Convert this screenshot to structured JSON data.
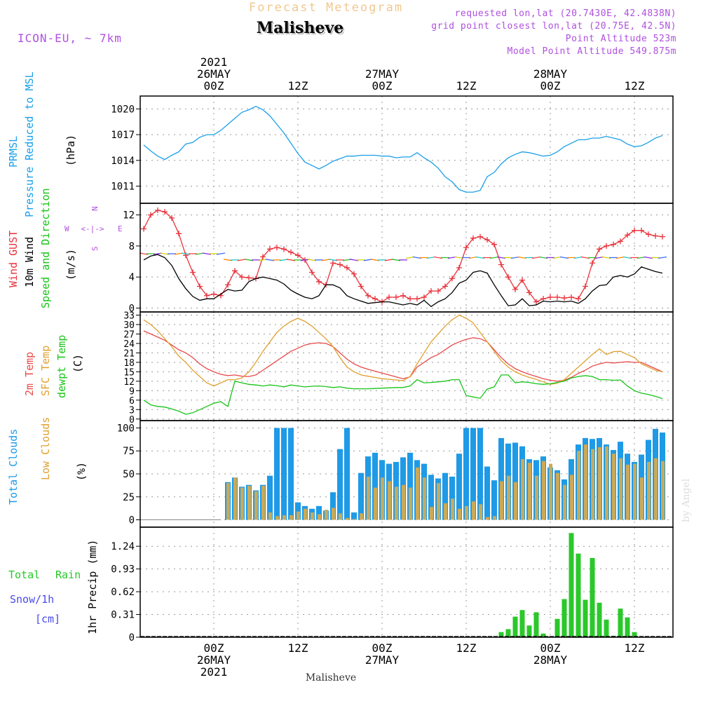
{
  "header": {
    "product": "Forecast Meteogram",
    "station": "Malisheve",
    "model": "ICON-EU, ~ 7km",
    "requested": "requested lon,lat (20.7430E, 42.4838N)",
    "grid_point": "grid point closest lon,lat (20.75E, 42.5N)",
    "point_alt": "Point Altitude 523m",
    "model_alt": "Model Point Altitude 549.875m",
    "footer_station": "Malisheve",
    "credit": "by Angel"
  },
  "colors": {
    "pressure": "#1aa0e8",
    "gust": "#e8313a",
    "wind": "#000000",
    "temp2m": "#e84a4a",
    "sfc": "#e0a030",
    "dew": "#18c418",
    "total_clouds": "#1e9ae6",
    "low_clouds": "#c8aa5a",
    "rain": "#2ac82a",
    "snow": "#4a4ae8",
    "label_purple": "#b050e0",
    "product_title": "#f0c890"
  },
  "time_axis": {
    "top_labels": [
      {
        "h": 0,
        "lines": [
          "2021",
          "26MAY",
          "00Z"
        ]
      },
      {
        "h": 12,
        "lines": [
          "12Z"
        ]
      },
      {
        "h": 24,
        "lines": [
          "27MAY",
          "00Z"
        ]
      },
      {
        "h": 36,
        "lines": [
          "12Z"
        ]
      },
      {
        "h": 48,
        "lines": [
          "28MAY",
          "00Z"
        ]
      },
      {
        "h": 60,
        "lines": [
          "12Z"
        ]
      }
    ],
    "bottom_labels": [
      {
        "h": 0,
        "lines": [
          "00Z",
          "26MAY",
          "2021"
        ]
      },
      {
        "h": 12,
        "lines": [
          "12Z"
        ]
      },
      {
        "h": 24,
        "lines": [
          "00Z",
          "27MAY"
        ]
      },
      {
        "h": 36,
        "lines": [
          "12Z"
        ]
      },
      {
        "h": 48,
        "lines": [
          "00Z",
          "28MAY"
        ]
      },
      {
        "h": 60,
        "lines": [
          "12Z"
        ]
      }
    ]
  },
  "panels": {
    "pressure": {
      "labels": [
        "PRMSL",
        "Pressure Reduced to MSL",
        "(hPa)"
      ],
      "ticks": [
        "1011",
        "1014",
        "1017",
        "1020"
      ]
    },
    "wind": {
      "labels": [
        "Wind GUST",
        "10m Wind",
        "Speed and Direction",
        "(m/s)"
      ],
      "ticks": [
        "0",
        "4",
        "8",
        "12"
      ],
      "compass": {
        "n": "N",
        "s": "S",
        "e": "E",
        "w": "W",
        "arrow": "<-|->"
      }
    },
    "temp": {
      "labels": [
        "2m Temp",
        "SFC Temp",
        "dewpt Temp",
        "(C)"
      ],
      "ticks": [
        "0",
        "3",
        "6",
        "9",
        "12",
        "15",
        "18",
        "21",
        "24",
        "27",
        "30",
        "33"
      ]
    },
    "clouds": {
      "labels": [
        "Total Clouds",
        "Low Clouds",
        "(%)"
      ],
      "ticks": [
        "0",
        "25",
        "50",
        "75",
        "100"
      ]
    },
    "precip": {
      "labels": [
        "Total",
        "Rain",
        "Snow/1h",
        "[cm]",
        "1hr Precip (mm)"
      ],
      "ticks": [
        "0",
        "0.31",
        "0.62",
        "0.93",
        "1.24"
      ]
    }
  },
  "chart_data": [
    {
      "type": "line",
      "name": "PRMSL",
      "ylabel": "(hPa)",
      "xunit": "hours from 2021-05-26 00Z",
      "ylim": [
        1009,
        1021.5
      ],
      "x": [
        -10,
        -9,
        -8,
        -7,
        -6,
        -5,
        -4,
        -3,
        -2,
        -1,
        0,
        1,
        2,
        3,
        4,
        5,
        6,
        7,
        8,
        9,
        10,
        11,
        12,
        13,
        14,
        15,
        16,
        17,
        18,
        19,
        20,
        21,
        22,
        23,
        24,
        25,
        26,
        27,
        28,
        29,
        30,
        31,
        32,
        33,
        34,
        35,
        36,
        37,
        38,
        39,
        40,
        41,
        42,
        43,
        44,
        45,
        46,
        47,
        48,
        49,
        50,
        51,
        52,
        53,
        54,
        55,
        56,
        57,
        58,
        59,
        60,
        61,
        62,
        63,
        64
      ],
      "series": [
        {
          "values": [
            1015.8,
            1015.1,
            1014.5,
            1014.1,
            1014.6,
            1015.0,
            1015.9,
            1016.1,
            1016.7,
            1017.0,
            1017.0,
            1017.5,
            1018.2,
            1018.9,
            1019.6,
            1019.9,
            1020.3,
            1019.9,
            1019.2,
            1018.2,
            1017.2,
            1016.0,
            1014.8,
            1013.8,
            1013.4,
            1013.0,
            1013.4,
            1013.9,
            1014.2,
            1014.5,
            1014.5,
            1014.6,
            1014.6,
            1014.6,
            1014.5,
            1014.5,
            1014.3,
            1014.4,
            1014.4,
            1014.9,
            1014.3,
            1013.8,
            1013.1,
            1012.1,
            1011.5,
            1010.6,
            1010.3,
            1010.3,
            1010.5,
            1012.1,
            1012.6,
            1013.6,
            1014.3,
            1014.7,
            1015.0,
            1014.9,
            1014.7,
            1014.5,
            1014.6,
            1015.0,
            1015.6,
            1016.0,
            1016.4,
            1016.4,
            1016.6,
            1016.6,
            1016.8,
            1016.6,
            1016.4,
            1015.9,
            1015.6,
            1015.7,
            1016.1,
            1016.6,
            1016.9
          ]
        }
      ]
    },
    {
      "type": "line",
      "name": "Wind",
      "ylabel": "(m/s)",
      "ylim": [
        -0.5,
        13.5
      ],
      "x": [
        -10,
        -9,
        -8,
        -7,
        -6,
        -5,
        -4,
        -3,
        -2,
        -1,
        0,
        1,
        2,
        3,
        4,
        5,
        6,
        7,
        8,
        9,
        10,
        11,
        12,
        13,
        14,
        15,
        16,
        17,
        18,
        19,
        20,
        21,
        22,
        23,
        24,
        25,
        26,
        27,
        28,
        29,
        30,
        31,
        32,
        33,
        34,
        35,
        36,
        37,
        38,
        39,
        40,
        41,
        42,
        43,
        44,
        45,
        46,
        47,
        48,
        49,
        50,
        51,
        52,
        53,
        54,
        55,
        56,
        57,
        58,
        59,
        60,
        61,
        62,
        63,
        64
      ],
      "series": [
        {
          "name": "Wind GUST",
          "values": [
            10.2,
            12.0,
            12.6,
            12.4,
            11.6,
            9.6,
            6.8,
            4.6,
            2.8,
            1.6,
            1.8,
            1.6,
            3.0,
            4.8,
            4.0,
            3.9,
            3.8,
            6.6,
            7.6,
            7.8,
            7.6,
            7.2,
            6.8,
            6.2,
            4.6,
            3.4,
            3.0,
            5.8,
            5.6,
            5.2,
            4.4,
            2.8,
            1.6,
            1.2,
            0.8,
            1.4,
            1.4,
            1.6,
            1.2,
            1.2,
            1.4,
            2.2,
            2.2,
            2.8,
            3.8,
            5.2,
            7.8,
            9.0,
            9.2,
            8.8,
            8.2,
            5.6,
            4.0,
            2.4,
            3.6,
            2.0,
            0.8,
            1.2,
            1.4,
            1.4,
            1.3,
            1.4,
            1.2,
            2.8,
            5.8,
            7.6,
            8.0,
            8.2,
            8.6,
            9.4,
            10.0,
            10.0,
            9.5,
            9.3,
            9.2
          ]
        },
        {
          "name": "10m Wind",
          "values": [
            6.2,
            6.7,
            6.9,
            6.5,
            5.5,
            3.8,
            2.5,
            1.5,
            1.0,
            1.2,
            1.2,
            1.8,
            2.4,
            2.2,
            2.3,
            3.4,
            3.8,
            4.0,
            3.8,
            3.6,
            3.1,
            2.3,
            1.8,
            1.4,
            1.2,
            1.6,
            3.0,
            3.0,
            2.6,
            1.6,
            1.2,
            0.9,
            0.6,
            0.7,
            0.8,
            0.8,
            0.6,
            0.4,
            0.6,
            0.4,
            1.0,
            0.2,
            0.8,
            1.2,
            2.0,
            3.2,
            3.6,
            4.6,
            4.8,
            4.5,
            3.0,
            1.6,
            0.3,
            0.4,
            1.2,
            0.3,
            0.4,
            0.9,
            0.8,
            0.9,
            0.8,
            0.9,
            0.6,
            1.2,
            2.2,
            2.9,
            3.0,
            4.0,
            4.2,
            4.0,
            4.4,
            5.3,
            5.0,
            4.7,
            4.5
          ]
        }
      ]
    },
    {
      "type": "line",
      "name": "Temperature",
      "ylabel": "(C)",
      "ylim": [
        -0.5,
        34
      ],
      "x": [
        -10,
        -9,
        -8,
        -7,
        -6,
        -5,
        -4,
        -3,
        -2,
        -1,
        0,
        1,
        2,
        3,
        4,
        5,
        6,
        7,
        8,
        9,
        10,
        11,
        12,
        13,
        14,
        15,
        16,
        17,
        18,
        19,
        20,
        21,
        22,
        23,
        24,
        25,
        26,
        27,
        28,
        29,
        30,
        31,
        32,
        33,
        34,
        35,
        36,
        37,
        38,
        39,
        40,
        41,
        42,
        43,
        44,
        45,
        46,
        47,
        48,
        49,
        50,
        51,
        52,
        53,
        54,
        55,
        56,
        57,
        58,
        59,
        60,
        61,
        62,
        63,
        64
      ],
      "series": [
        {
          "name": "2m Temp",
          "values": [
            28.0,
            27.0,
            26.0,
            25.0,
            23.5,
            22.0,
            21.0,
            19.5,
            17.5,
            16.0,
            15.0,
            14.2,
            13.8,
            14.0,
            13.6,
            13.5,
            14.0,
            15.5,
            17.0,
            18.5,
            20.0,
            21.5,
            22.5,
            23.5,
            24.0,
            24.2,
            24.0,
            23.0,
            21.0,
            19.0,
            17.5,
            16.5,
            15.8,
            15.2,
            14.6,
            14.0,
            13.4,
            12.8,
            13.4,
            16.5,
            18.0,
            19.5,
            20.5,
            22.0,
            23.5,
            24.5,
            25.3,
            25.8,
            25.5,
            24.5,
            22.0,
            19.5,
            17.5,
            16.0,
            15.0,
            14.2,
            13.5,
            12.8,
            12.3,
            12.0,
            12.3,
            13.2,
            14.5,
            15.5,
            16.8,
            17.5,
            18.0,
            17.8,
            18.0,
            18.2,
            18.0,
            18.0,
            17.0,
            16.0,
            15.0
          ]
        },
        {
          "name": "SFC Temp",
          "values": [
            31.5,
            30.0,
            28.0,
            25.5,
            23.0,
            20.0,
            18.0,
            15.5,
            13.5,
            11.5,
            10.5,
            11.5,
            12.5,
            12.5,
            13.0,
            15.0,
            18.0,
            21.5,
            24.5,
            27.5,
            29.5,
            31.0,
            32.0,
            31.0,
            29.5,
            27.5,
            25.5,
            23.0,
            19.5,
            16.5,
            15.0,
            14.0,
            13.6,
            13.2,
            12.8,
            12.6,
            12.4,
            12.2,
            13.5,
            17.5,
            21.0,
            24.5,
            27.0,
            29.5,
            31.5,
            33.0,
            32.0,
            30.5,
            27.5,
            24.5,
            21.5,
            18.5,
            16.5,
            15.0,
            14.0,
            13.2,
            12.6,
            11.8,
            11.0,
            11.4,
            12.5,
            14.5,
            16.5,
            18.5,
            20.5,
            22.3,
            20.5,
            21.4,
            21.5,
            20.5,
            19.5,
            17.5,
            16.5,
            15.5,
            15.0
          ]
        },
        {
          "name": "dewpt Temp",
          "values": [
            6.0,
            4.5,
            4.0,
            3.8,
            3.2,
            2.5,
            1.5,
            2.0,
            3.0,
            4.0,
            5.0,
            5.5,
            4.0,
            12.0,
            11.5,
            11.0,
            10.8,
            10.5,
            10.8,
            10.6,
            10.2,
            10.8,
            10.5,
            10.2,
            10.4,
            10.5,
            10.3,
            10.0,
            10.2,
            9.8,
            9.6,
            9.6,
            9.6,
            9.7,
            9.8,
            9.9,
            10.0,
            10.0,
            10.5,
            12.5,
            11.5,
            11.6,
            11.8,
            12.0,
            12.5,
            12.5,
            7.5,
            7.0,
            6.6,
            9.5,
            10.2,
            14.0,
            14.0,
            11.5,
            11.8,
            11.6,
            11.2,
            11.0,
            11.2,
            11.6,
            12.0,
            13.0,
            13.5,
            13.8,
            13.5,
            12.5,
            12.5,
            12.3,
            12.4,
            10.5,
            9.0,
            8.2,
            7.8,
            7.2,
            6.5
          ]
        }
      ]
    },
    {
      "type": "bar",
      "name": "Clouds",
      "ylabel": "(%)",
      "ylim": [
        0,
        100
      ],
      "x": [
        -10,
        -9,
        -8,
        -7,
        -6,
        -5,
        -4,
        -3,
        -2,
        -1,
        0,
        1,
        2,
        3,
        4,
        5,
        6,
        7,
        8,
        9,
        10,
        11,
        12,
        13,
        14,
        15,
        16,
        17,
        18,
        19,
        20,
        21,
        22,
        23,
        24,
        25,
        26,
        27,
        28,
        29,
        30,
        31,
        32,
        33,
        34,
        35,
        36,
        37,
        38,
        39,
        40,
        41,
        42,
        43,
        44,
        45,
        46,
        47,
        48,
        49,
        50,
        51,
        52,
        53,
        54,
        55,
        56,
        57,
        58,
        59,
        60,
        61,
        62,
        63,
        64
      ],
      "series": [
        {
          "name": "Total Clouds",
          "values": [
            0,
            0,
            0,
            0,
            0,
            0,
            0,
            0,
            0,
            0,
            0,
            0,
            41,
            46,
            36,
            38,
            32,
            38,
            48,
            100,
            100,
            100,
            19,
            15,
            12,
            15,
            10,
            30,
            77,
            100,
            8,
            51,
            69,
            73,
            65,
            61,
            63,
            68,
            73,
            65,
            61,
            49,
            45,
            51,
            47,
            72,
            100,
            100,
            100,
            58,
            43,
            89,
            83,
            84,
            80,
            66,
            65,
            69,
            57,
            54,
            44,
            66,
            82,
            89,
            88,
            89,
            82,
            76,
            85,
            72,
            63,
            71,
            87,
            99,
            95
          ]
        },
        {
          "name": "Low Clouds",
          "values": [
            0,
            0,
            0,
            0,
            0,
            0,
            0,
            0,
            0,
            0,
            0,
            0,
            40,
            46,
            35,
            37,
            31,
            37,
            8,
            4,
            5,
            5,
            9,
            12,
            8,
            6,
            11,
            13,
            7,
            2,
            1,
            7,
            47,
            35,
            46,
            42,
            36,
            38,
            35,
            57,
            46,
            14,
            40,
            18,
            23,
            12,
            15,
            20,
            17,
            3,
            4,
            42,
            48,
            41,
            66,
            62,
            48,
            64,
            61,
            51,
            38,
            49,
            75,
            82,
            77,
            79,
            80,
            72,
            67,
            60,
            61,
            46,
            63,
            67,
            64
          ]
        }
      ]
    },
    {
      "type": "bar",
      "name": "Precipitation",
      "ylabel": "1hr Precip (mm)",
      "ylim": [
        0,
        1.4
      ],
      "x": [
        41,
        42,
        43,
        44,
        45,
        46,
        47,
        48,
        49,
        50,
        51,
        52,
        53,
        54,
        55,
        56,
        57,
        58,
        59,
        60,
        61,
        62,
        63
      ],
      "series": [
        {
          "name": "Total Rain",
          "values": [
            0.07,
            0.11,
            0.28,
            0.37,
            0.16,
            0.34,
            0.05,
            0.01,
            0.25,
            0.52,
            1.42,
            1.14,
            0.51,
            1.08,
            0.47,
            0.24,
            0.02,
            0.39,
            0.27,
            0.07,
            0.0,
            0.0,
            0.0
          ]
        }
      ]
    }
  ]
}
